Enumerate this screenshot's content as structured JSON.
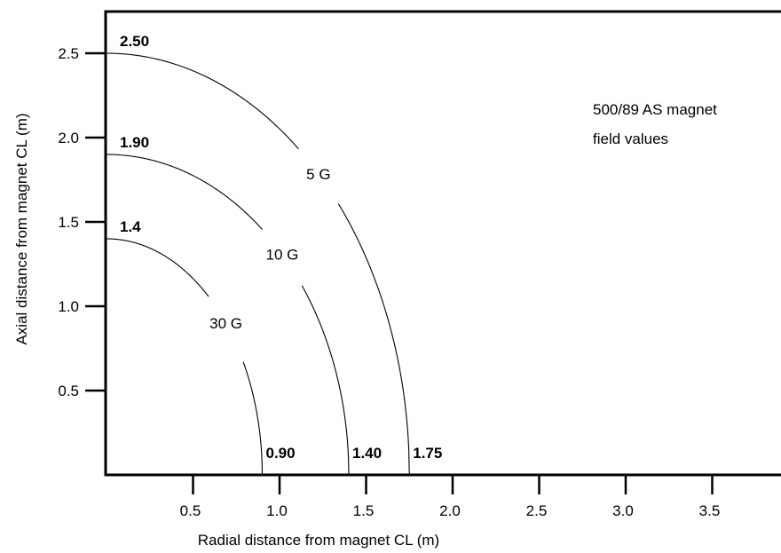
{
  "chart_data": {
    "type": "line",
    "title": "",
    "xlabel": "Radial distance from magnet CL (m)",
    "ylabel": "Axial distance from magnet CL (m)",
    "xlim": [
      0,
      3.9
    ],
    "ylim": [
      0,
      2.75
    ],
    "x_ticks": [
      "0.5",
      "1.0",
      "1.5",
      "2.0",
      "2.5",
      "3.0",
      "3.5"
    ],
    "y_ticks": [
      "0.5",
      "1.0",
      "1.5",
      "2.0",
      "2.5"
    ],
    "grid": false,
    "annotation": [
      "500/89 AS magnet",
      "field values"
    ],
    "series": [
      {
        "name": "5 G",
        "x_intercept": 1.75,
        "x_intercept_label": "1.75",
        "y_intercept": 2.5,
        "y_intercept_label": "2.50",
        "label_gap": [
          1.11,
          1.34
        ]
      },
      {
        "name": "10 G",
        "x_intercept": 1.4,
        "x_intercept_label": "1.40",
        "y_intercept": 1.9,
        "y_intercept_label": "1.90",
        "label_gap": [
          0.9,
          1.13
        ]
      },
      {
        "name": "30 G",
        "x_intercept": 0.9,
        "x_intercept_label": "0.90",
        "y_intercept": 1.4,
        "y_intercept_label": "1.4",
        "label_gap": [
          0.59,
          0.79
        ]
      }
    ]
  }
}
